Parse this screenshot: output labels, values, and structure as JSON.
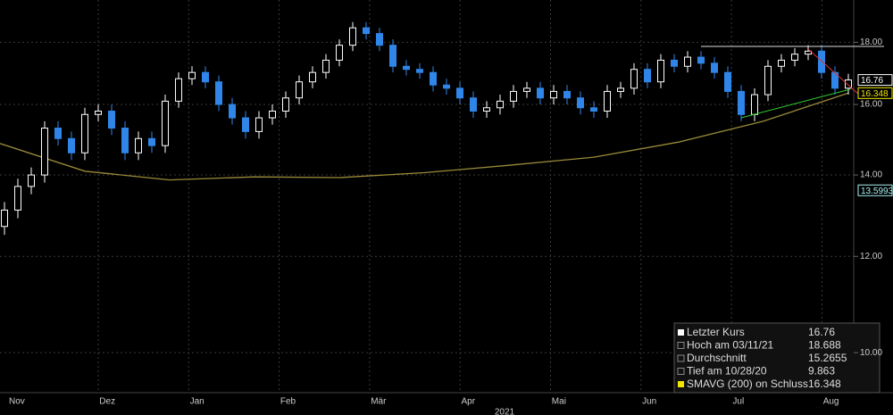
{
  "chart_data": {
    "type": "candlestick",
    "log_scale": true,
    "grid": true,
    "up_color": "#ffffff",
    "down_color": "#2f86e8",
    "sma_color": "#9a8a3a",
    "ylim": [
      9.27,
      19.5
    ],
    "yticks": [
      {
        "value": 10,
        "label": "10.00"
      },
      {
        "value": 12,
        "label": "12.00"
      },
      {
        "value": 14,
        "label": "14.00"
      },
      {
        "value": 16,
        "label": "16.00"
      },
      {
        "value": 18,
        "label": "18.00"
      }
    ],
    "months": [
      "Nov",
      "Dez",
      "Jan",
      "Feb",
      "Mär",
      "Apr",
      "Mai",
      "Jun",
      "Jul",
      "Aug"
    ],
    "year": "2021",
    "open": [
      12.7,
      13.1,
      13.7,
      14.0,
      15.3,
      15.0,
      14.6,
      15.7,
      15.8,
      15.3,
      14.6,
      15.0,
      14.8,
      16.1,
      16.8,
      17.0,
      16.7,
      16.0,
      15.6,
      15.2,
      15.6,
      15.8,
      16.2,
      16.7,
      17.0,
      17.4,
      17.9,
      18.5,
      18.3,
      17.9,
      17.2,
      17.1,
      17.0,
      16.6,
      16.5,
      16.2,
      15.8,
      15.9,
      16.1,
      16.4,
      16.5,
      16.2,
      16.4,
      16.2,
      15.9,
      15.8,
      16.4,
      16.5,
      17.1,
      16.7,
      17.4,
      17.2,
      17.5,
      17.3,
      17.0,
      16.4,
      15.7,
      16.3,
      17.2,
      17.4,
      17.6,
      17.7,
      17.0,
      16.5
    ],
    "high": [
      13.3,
      13.9,
      14.2,
      15.5,
      15.5,
      15.2,
      15.9,
      16.0,
      16.0,
      15.5,
      15.2,
      15.2,
      16.3,
      17.0,
      17.2,
      17.2,
      16.9,
      16.2,
      15.8,
      15.8,
      16.0,
      16.4,
      16.9,
      17.2,
      17.6,
      18.1,
      18.7,
      18.7,
      18.5,
      18.1,
      17.4,
      17.3,
      17.2,
      16.8,
      16.7,
      16.4,
      16.1,
      16.3,
      16.6,
      16.7,
      16.7,
      16.6,
      16.6,
      16.4,
      16.1,
      16.6,
      16.7,
      17.3,
      17.3,
      17.6,
      17.6,
      17.7,
      17.7,
      17.5,
      17.2,
      16.6,
      16.5,
      17.4,
      17.6,
      17.8,
      17.9,
      17.9,
      17.2,
      16.96
    ],
    "low": [
      12.5,
      12.9,
      13.5,
      13.8,
      14.8,
      14.4,
      14.4,
      15.5,
      15.1,
      14.4,
      14.4,
      14.6,
      14.6,
      15.9,
      16.6,
      16.5,
      15.8,
      15.4,
      15.0,
      15.0,
      15.4,
      15.6,
      16.0,
      16.5,
      16.8,
      17.2,
      17.7,
      18.1,
      17.7,
      17.0,
      16.9,
      16.8,
      16.4,
      16.3,
      16.0,
      15.6,
      15.6,
      15.7,
      15.9,
      16.2,
      16.0,
      16.0,
      16.0,
      15.7,
      15.6,
      15.6,
      16.2,
      16.3,
      16.5,
      16.5,
      17.0,
      17.0,
      17.1,
      16.8,
      16.2,
      15.5,
      15.5,
      16.1,
      17.0,
      17.2,
      17.4,
      16.8,
      16.3,
      16.3
    ],
    "close": [
      13.1,
      13.7,
      14.0,
      15.3,
      15.0,
      14.6,
      15.7,
      15.8,
      15.3,
      14.6,
      15.0,
      14.8,
      16.1,
      16.8,
      17.0,
      16.7,
      16.0,
      15.6,
      15.2,
      15.6,
      15.8,
      16.2,
      16.7,
      17.0,
      17.4,
      17.9,
      18.5,
      18.3,
      17.9,
      17.2,
      17.1,
      17.0,
      16.6,
      16.5,
      16.2,
      15.8,
      15.9,
      16.1,
      16.4,
      16.5,
      16.2,
      16.4,
      16.2,
      15.9,
      15.8,
      16.4,
      16.5,
      17.1,
      16.7,
      17.4,
      17.2,
      17.5,
      17.3,
      17.0,
      16.4,
      15.7,
      16.3,
      17.2,
      17.4,
      17.6,
      17.7,
      17.0,
      16.5,
      16.76
    ],
    "sma": [
      14.86,
      14.1,
      13.87,
      13.95,
      13.93,
      14.06,
      14.26,
      14.48,
      14.9,
      15.5,
      16.35
    ],
    "price_tags": [
      {
        "label": "16.76",
        "value": 16.76,
        "color": "#ffffff"
      },
      {
        "label": "16.348",
        "value": 16.348,
        "color": "#f2e600"
      },
      {
        "label": "13.5993",
        "value": 13.5993,
        "color": "#a8f0f0"
      }
    ],
    "legend": [
      {
        "label": "Letzter Kurs",
        "value": "16.76"
      },
      {
        "label": "Hoch am 03/11/21",
        "value": "18.688"
      },
      {
        "label": "Durchschnitt",
        "value": "15.2655"
      },
      {
        "label": "Tief am 10/28/20",
        "value": "9.863"
      },
      {
        "label": "SMAVG (200)  on Schluss",
        "value": "16.348"
      }
    ]
  }
}
